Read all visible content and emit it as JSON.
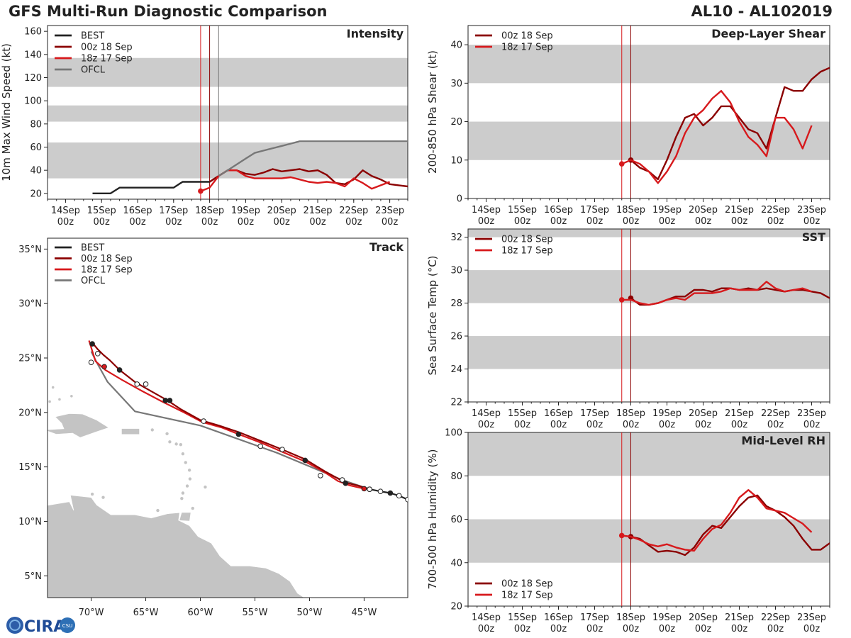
{
  "header": {
    "title": "GFS Multi-Run Diagnostic Comparison",
    "storm_id": "AL10 - AL102019"
  },
  "logo": {
    "text": "CIRA",
    "subtext": "CSU"
  },
  "colors": {
    "best": "#222222",
    "run00z": "#8b0000",
    "run18z": "#d7191c",
    "ofcl": "#777777",
    "band": "#cccccc",
    "land": "#c4c4c4"
  },
  "time_axis": {
    "start_day": 13.5,
    "end_day": 23.5,
    "day_ticks": [
      14,
      15,
      16,
      17,
      18,
      19,
      20,
      21,
      22,
      23
    ],
    "tick_labels": [
      "14Sep",
      "15Sep",
      "16Sep",
      "17Sep",
      "18Sep",
      "19Sep",
      "20Sep",
      "21Sep",
      "22Sep",
      "23Sep"
    ],
    "tick_sublabel": "00z",
    "init_lines": [
      17.75,
      18.0
    ]
  },
  "chart_data": [
    {
      "id": "intensity",
      "type": "line",
      "title": "Intensity",
      "ylabel": "10m Max Wind Speed (kt)",
      "ylim": [
        15,
        165
      ],
      "yticks": [
        20,
        40,
        60,
        80,
        100,
        120,
        140,
        160
      ],
      "bands": [
        [
          33,
          64
        ],
        [
          82,
          96
        ],
        [
          112,
          137
        ]
      ],
      "vlines": [
        {
          "day": 17.75,
          "color": "run18z"
        },
        {
          "day": 18.0,
          "color": "run00z"
        },
        {
          "day": 18.25,
          "color": "ofcl"
        }
      ],
      "legend": [
        "BEST",
        "00z 18 Sep",
        "18z 17 Sep",
        "OFCL"
      ],
      "series": [
        {
          "name": "BEST",
          "color": "best",
          "x": [
            14.75,
            15.0,
            15.25,
            15.5,
            15.75,
            16.0,
            16.25,
            16.5,
            16.75,
            17.0,
            17.25,
            17.5,
            17.75,
            18.0,
            18.25
          ],
          "y": [
            20,
            20,
            20,
            25,
            25,
            25,
            25,
            25,
            25,
            25,
            30,
            30,
            30,
            30,
            35
          ]
        },
        {
          "name": "00z 18 Sep",
          "color": "run00z",
          "marker_first": false,
          "x": [
            18.0,
            18.25,
            18.5,
            18.75,
            19.0,
            19.25,
            19.5,
            19.75,
            20.0,
            20.25,
            20.5,
            20.75,
            21.0,
            21.25,
            21.5,
            21.75,
            22.0,
            22.25,
            22.5,
            22.75,
            23.0,
            23.25,
            23.5
          ],
          "y": [
            30,
            35,
            40,
            40,
            37,
            36,
            38,
            41,
            39,
            40,
            41,
            39,
            40,
            36,
            29,
            28,
            32,
            40,
            35,
            32,
            28,
            27,
            26
          ]
        },
        {
          "name": "18z 17 Sep",
          "color": "run18z",
          "marker_first": true,
          "x": [
            17.75,
            18.0,
            18.25,
            18.5,
            18.75,
            19.0,
            19.25,
            19.5,
            19.75,
            20.0,
            20.25,
            20.5,
            20.75,
            21.0,
            21.25,
            21.5,
            21.75,
            22.0,
            22.25,
            22.5,
            22.75,
            23.0
          ],
          "y": [
            22,
            25,
            35,
            40,
            40,
            35,
            33,
            33,
            33,
            33,
            34,
            32,
            30,
            29,
            30,
            29,
            26,
            33,
            29,
            24,
            27,
            30
          ]
        },
        {
          "name": "OFCL",
          "color": "ofcl",
          "x": [
            18.25,
            18.5,
            18.75,
            19.0,
            19.25,
            19.5,
            19.75,
            20.0,
            20.25,
            20.5,
            21.0,
            21.5,
            22.0,
            22.5,
            23.0,
            23.5
          ],
          "y": [
            35,
            40,
            45,
            50,
            55,
            57,
            59,
            61,
            63,
            65,
            65,
            65,
            65,
            65,
            65,
            65
          ]
        }
      ]
    },
    {
      "id": "shear",
      "type": "line",
      "title": "Deep-Layer Shear",
      "ylabel": "200-850 hPa Shear (kt)",
      "ylim": [
        0,
        45
      ],
      "yticks": [
        0,
        10,
        20,
        30,
        40
      ],
      "bands": [
        [
          10,
          20
        ],
        [
          30,
          40
        ]
      ],
      "vlines": [
        {
          "day": 17.75,
          "color": "run18z"
        },
        {
          "day": 18.0,
          "color": "run00z"
        }
      ],
      "legend": [
        "00z 18 Sep",
        "18z 17 Sep"
      ],
      "series": [
        {
          "name": "00z 18 Sep",
          "color": "run00z",
          "marker_first": true,
          "x": [
            18.0,
            18.25,
            18.5,
            18.75,
            19.0,
            19.25,
            19.5,
            19.75,
            20.0,
            20.25,
            20.5,
            20.75,
            21.0,
            21.25,
            21.5,
            21.75,
            22.0,
            22.25,
            22.5,
            22.75,
            23.0,
            23.25,
            23.5
          ],
          "y": [
            10,
            8,
            7,
            5,
            10,
            16,
            21,
            22,
            19,
            21,
            24,
            24,
            21,
            18,
            17,
            13,
            21,
            29,
            28,
            28,
            31,
            33,
            34
          ]
        },
        {
          "name": "18z 17 Sep",
          "color": "run18z",
          "marker_first": true,
          "x": [
            17.75,
            18.0,
            18.25,
            18.5,
            18.75,
            19.0,
            19.25,
            19.5,
            19.75,
            20.0,
            20.25,
            20.5,
            20.75,
            21.0,
            21.25,
            21.5,
            21.75,
            22.0,
            22.25,
            22.5,
            22.75,
            23.0
          ],
          "y": [
            9,
            10,
            9,
            7,
            4,
            7,
            11,
            17,
            21,
            23,
            26,
            28,
            25,
            20,
            16,
            14,
            11,
            21,
            21,
            18,
            13,
            19
          ]
        }
      ]
    },
    {
      "id": "sst",
      "type": "line",
      "title": "SST",
      "ylabel": "Sea Surface Temp (°C)",
      "ylim": [
        22,
        32.5
      ],
      "yticks": [
        22,
        24,
        26,
        28,
        30,
        32
      ],
      "bands": [
        [
          24,
          26
        ],
        [
          28,
          30
        ],
        [
          32,
          33
        ]
      ],
      "vlines": [
        {
          "day": 17.75,
          "color": "run18z"
        },
        {
          "day": 18.0,
          "color": "run00z"
        }
      ],
      "legend": [
        "00z 18 Sep",
        "18z 17 Sep"
      ],
      "series": [
        {
          "name": "00z 18 Sep",
          "color": "run00z",
          "marker_first": true,
          "x": [
            18.0,
            18.25,
            18.5,
            18.75,
            19.0,
            19.25,
            19.5,
            19.75,
            20.0,
            20.25,
            20.5,
            20.75,
            21.0,
            21.25,
            21.5,
            21.75,
            22.0,
            22.25,
            22.5,
            22.75,
            23.0,
            23.25,
            23.5
          ],
          "y": [
            28.3,
            27.9,
            27.9,
            28.0,
            28.2,
            28.4,
            28.4,
            28.8,
            28.8,
            28.7,
            28.9,
            28.9,
            28.8,
            28.9,
            28.8,
            28.9,
            28.8,
            28.7,
            28.8,
            28.8,
            28.7,
            28.6,
            28.3
          ]
        },
        {
          "name": "18z 17 Sep",
          "color": "run18z",
          "marker_first": true,
          "x": [
            17.75,
            18.0,
            18.25,
            18.5,
            18.75,
            19.0,
            19.25,
            19.5,
            19.75,
            20.0,
            20.25,
            20.5,
            20.75,
            21.0,
            21.25,
            21.5,
            21.75,
            22.0,
            22.25,
            22.5,
            22.75,
            23.0
          ],
          "y": [
            28.2,
            28.2,
            28.0,
            27.9,
            28.0,
            28.2,
            28.3,
            28.2,
            28.6,
            28.6,
            28.6,
            28.7,
            28.9,
            28.8,
            28.8,
            28.8,
            29.3,
            28.9,
            28.7,
            28.8,
            28.9,
            28.7
          ]
        }
      ]
    },
    {
      "id": "rh",
      "type": "line",
      "title": "Mid-Level RH",
      "ylabel": "700-500 hPa Humidity (%)",
      "ylim": [
        20,
        100
      ],
      "yticks": [
        20,
        40,
        60,
        80,
        100
      ],
      "bands": [
        [
          40,
          60
        ],
        [
          80,
          100
        ]
      ],
      "vlines": [
        {
          "day": 17.75,
          "color": "run18z"
        },
        {
          "day": 18.0,
          "color": "run00z"
        }
      ],
      "legend": [
        "00z 18 Sep",
        "18z 17 Sep"
      ],
      "legend_position": "bottom-left",
      "series": [
        {
          "name": "00z 18 Sep",
          "color": "run00z",
          "marker_first": true,
          "x": [
            18.0,
            18.25,
            18.5,
            18.75,
            19.0,
            19.25,
            19.5,
            19.75,
            20.0,
            20.25,
            20.5,
            20.75,
            21.0,
            21.25,
            21.5,
            21.75,
            22.0,
            22.25,
            22.5,
            22.75,
            23.0,
            23.25,
            23.5
          ],
          "y": [
            52,
            51,
            48,
            45,
            45.5,
            45,
            43.5,
            47,
            53,
            57,
            56,
            61,
            66,
            70,
            71,
            66,
            64,
            61,
            57,
            51,
            46,
            46,
            49
          ]
        },
        {
          "name": "18z 17 Sep",
          "color": "run18z",
          "marker_first": true,
          "x": [
            17.75,
            18.0,
            18.25,
            18.5,
            18.75,
            19.0,
            19.25,
            19.5,
            19.75,
            20.0,
            20.25,
            20.5,
            20.75,
            21.0,
            21.25,
            21.5,
            21.75,
            22.0,
            22.25,
            22.5,
            22.75,
            23.0
          ],
          "y": [
            52.5,
            52,
            50.5,
            48.5,
            47.5,
            48.5,
            47,
            46,
            45.5,
            51,
            55.5,
            57.5,
            63,
            70,
            73.5,
            70,
            65,
            64,
            63,
            60.5,
            58,
            54
          ]
        }
      ]
    },
    {
      "id": "track",
      "type": "scatter",
      "title": "Track",
      "xlim": [
        -74,
        -41
      ],
      "ylim": [
        3,
        36
      ],
      "xticks": [
        -70,
        -65,
        -60,
        -55,
        -50,
        -45
      ],
      "xtick_labels": [
        "70°W",
        "65°W",
        "60°W",
        "55°W",
        "50°W",
        "45°W"
      ],
      "yticks": [
        5,
        10,
        15,
        20,
        25,
        30,
        35
      ],
      "ytick_labels": [
        "5°N",
        "10°N",
        "15°N",
        "20°N",
        "25°N",
        "30°N",
        "35°N"
      ],
      "legend": [
        "BEST",
        "00z 18 Sep",
        "18z 17 Sep",
        "OFCL"
      ],
      "series": [
        {
          "name": "BEST",
          "color": "best",
          "lon": [
            -41.0,
            -41.8,
            -42.6,
            -43.5,
            -44.5
          ],
          "lat": [
            12.0,
            12.35,
            12.6,
            12.75,
            12.95
          ],
          "filled": [
            false,
            false,
            true,
            false,
            false
          ]
        },
        {
          "name": "00z 18 Sep",
          "color": "run00z",
          "lon": [
            -44.5,
            -45.6,
            -46.7,
            -48.6,
            -50.4,
            -52.5,
            -54.5,
            -56.5,
            -58.3,
            -60.0,
            -61.8,
            -63.0,
            -64.6,
            -66.0,
            -67.4,
            -68.3,
            -68.9,
            -69.4,
            -69.9
          ],
          "lat": [
            12.95,
            13.3,
            13.55,
            14.6,
            15.7,
            16.6,
            17.4,
            18.2,
            18.8,
            19.3,
            20.3,
            21.1,
            22.0,
            22.8,
            23.9,
            24.8,
            25.3,
            25.8,
            26.4
          ],
          "points_lon": [
            -46.7,
            -50.4,
            -54.5,
            -56.5,
            -62.8,
            -63.2,
            -65.8,
            -67.4,
            -69.4,
            -69.9
          ],
          "points_lat": [
            13.5,
            15.6,
            16.9,
            18.0,
            21.1,
            21.1,
            22.6,
            23.9,
            25.4,
            26.3
          ],
          "points_filled": [
            true,
            true,
            false,
            true,
            true,
            true,
            false,
            true,
            false,
            true
          ]
        },
        {
          "name": "18z 17 Sep",
          "color": "run18z",
          "lon": [
            -45.0,
            -46.3,
            -47.4,
            -48.6,
            -50.4,
            -52.3,
            -54.4,
            -56.5,
            -58.0,
            -59.8,
            -61.5,
            -63.5,
            -65.4,
            -67.2,
            -68.7,
            -69.6,
            -70.2
          ],
          "lat": [
            13.0,
            13.3,
            13.7,
            14.5,
            15.5,
            16.3,
            17.2,
            18.0,
            18.6,
            19.1,
            20.0,
            21.0,
            22.0,
            23.0,
            23.9,
            24.7,
            26.6
          ],
          "points_lon": [
            -45.0,
            -49.0,
            -52.5,
            -59.7,
            -65.0,
            -68.8
          ],
          "points_lat": [
            13.0,
            14.2,
            16.6,
            19.2,
            22.6,
            24.2
          ],
          "points_filled": [
            true,
            false,
            false,
            false,
            false,
            true
          ]
        },
        {
          "name": "OFCL",
          "color": "ofcl",
          "lon": [
            -44.5,
            -47.0,
            -53.0,
            -60.0,
            -66.0,
            -68.5,
            -69.5,
            -70.0
          ],
          "lat": [
            12.95,
            13.8,
            16.3,
            18.8,
            20.1,
            22.8,
            24.6,
            25.6
          ],
          "points_lon": [
            -44.5,
            -47.0,
            -70.0
          ],
          "points_lat": [
            12.95,
            13.8,
            24.6
          ],
          "points_filled": [
            false,
            false,
            false
          ]
        }
      ]
    }
  ]
}
